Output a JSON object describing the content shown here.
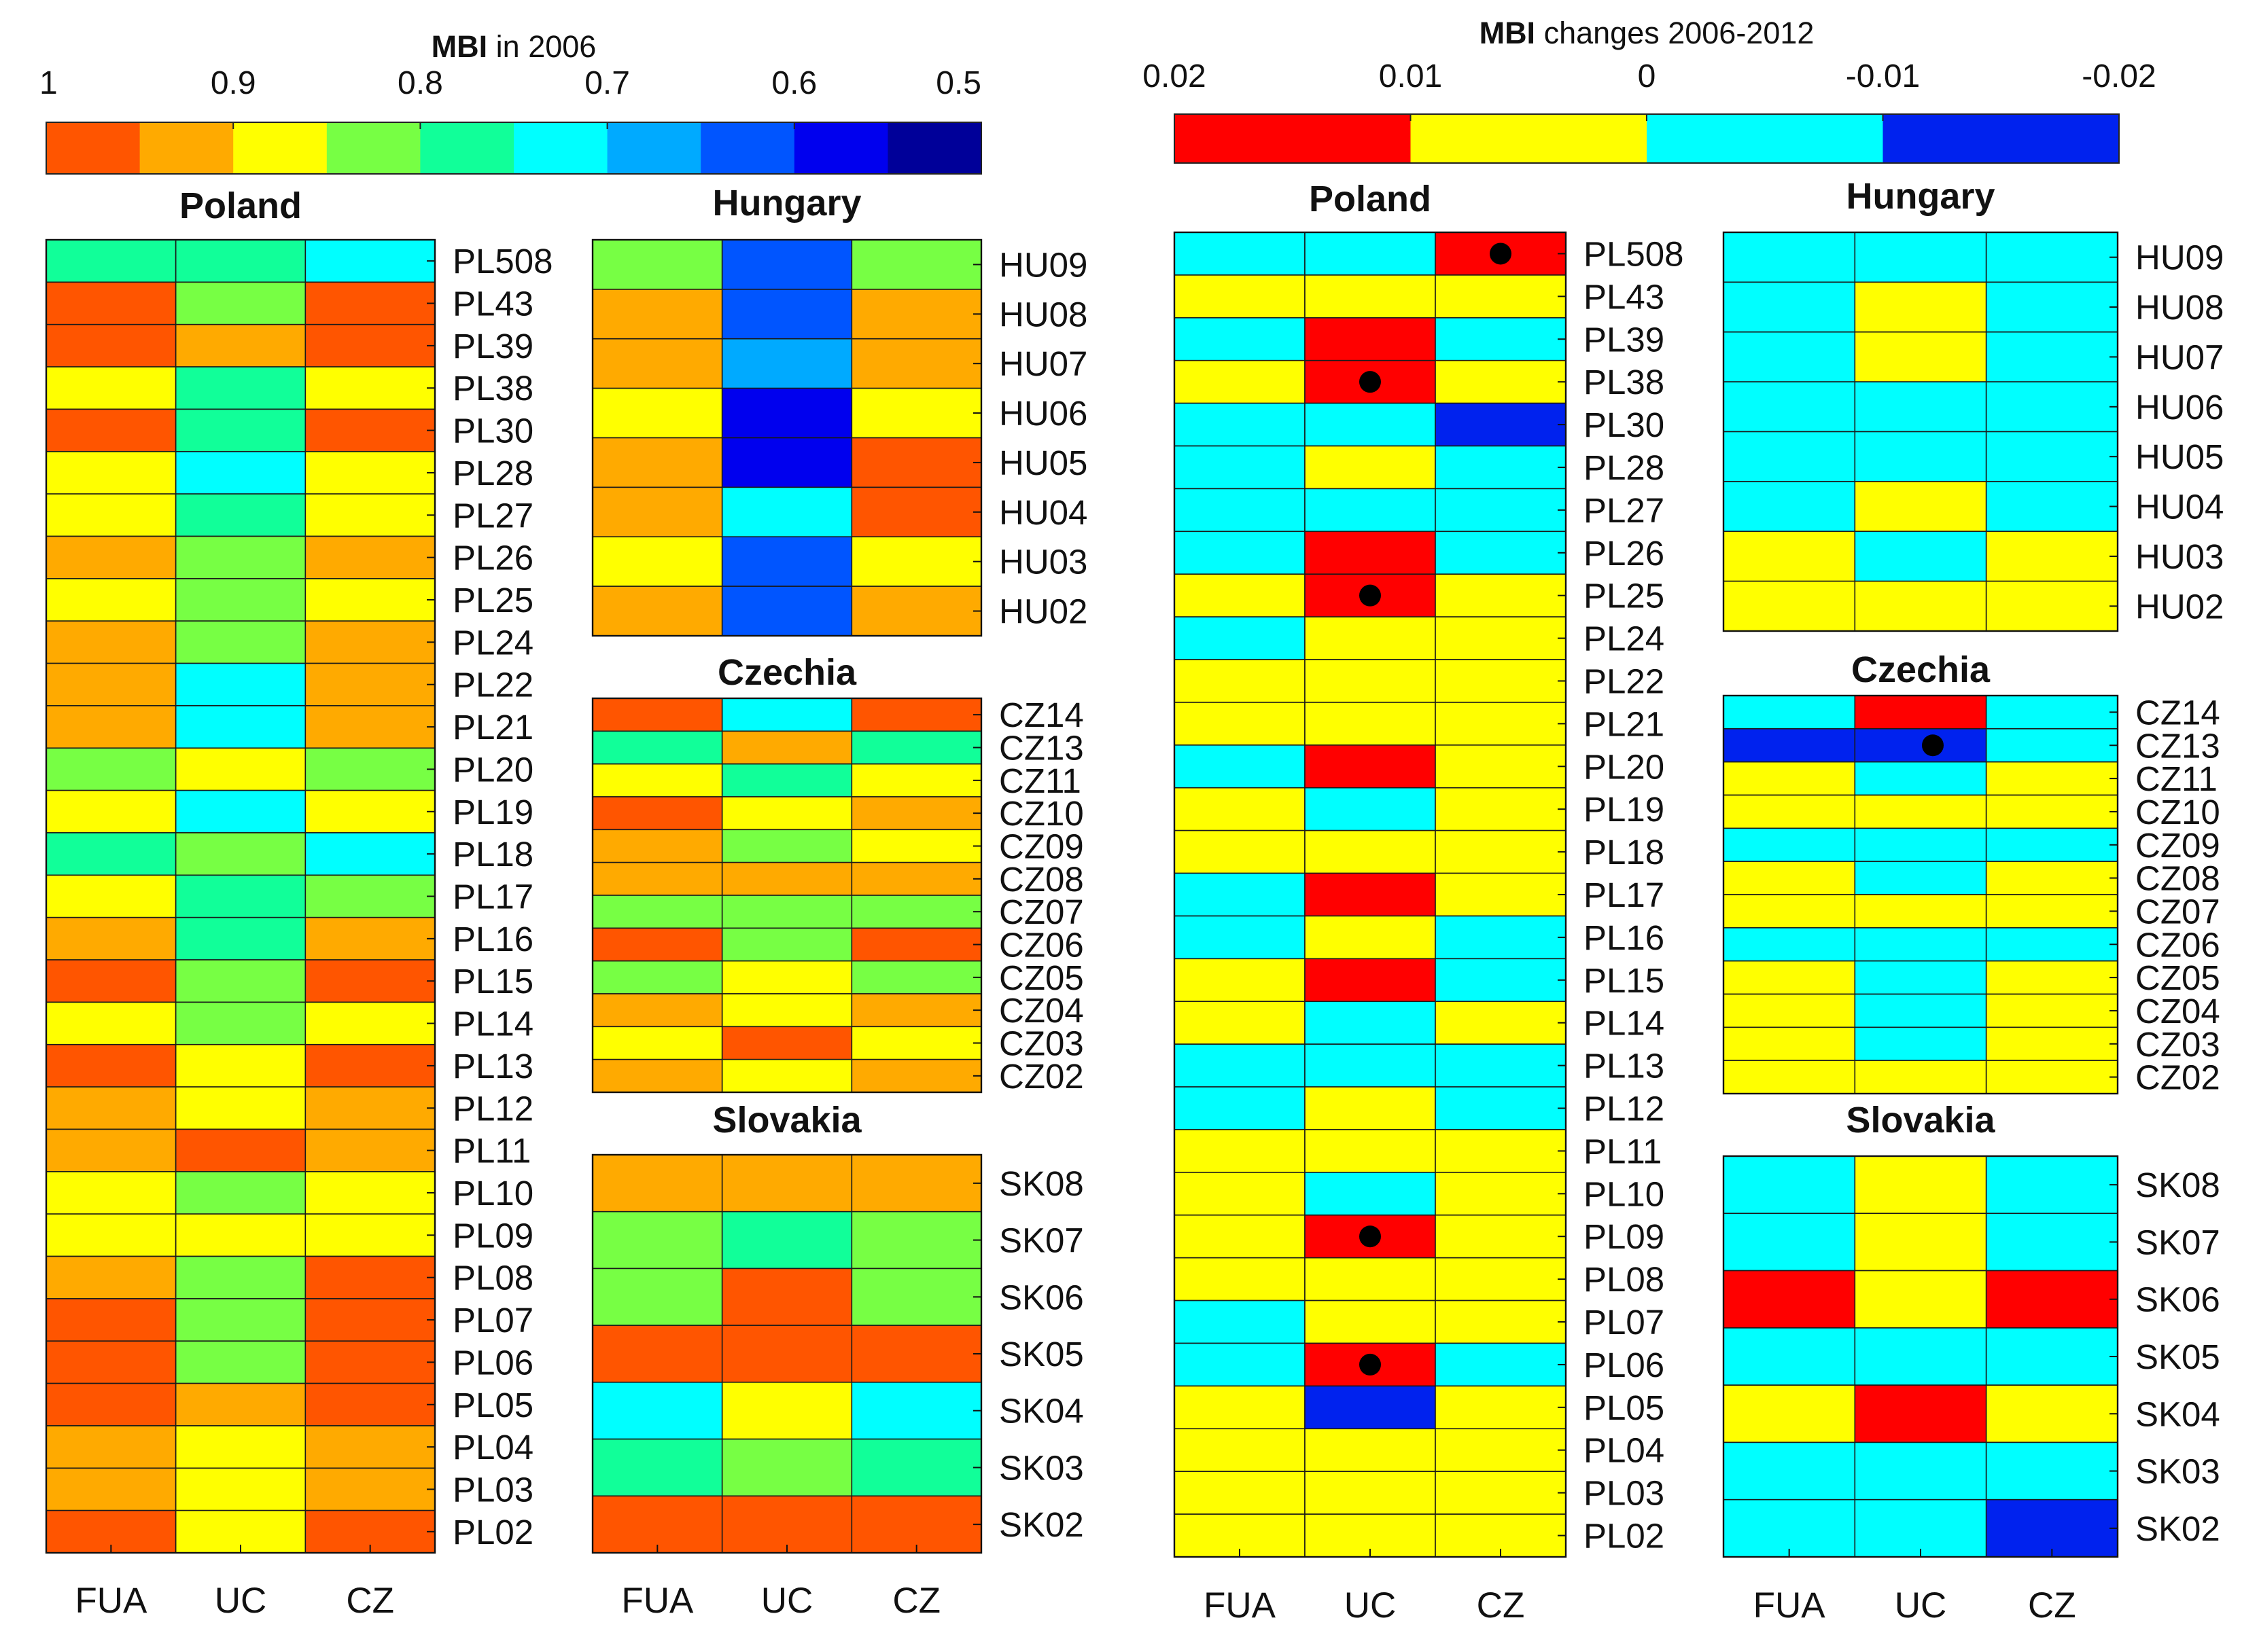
{
  "chart_data": [
    {
      "type": "heatmap",
      "panel": "left",
      "colorbar": {
        "title_bold": "MBI",
        "title_rest": " in 2006",
        "ticks": [
          "1",
          "0.9",
          "0.8",
          "0.7",
          "0.6",
          "0.5"
        ],
        "range": [
          1,
          0.5
        ],
        "colors": [
          "#ff5500",
          "#ffaa00",
          "#ffff00",
          "#77ff44",
          "#11ff99",
          "#00ffff",
          "#00aaff",
          "#0055ff",
          "#0000ee",
          "#000099"
        ]
      },
      "columns": [
        "FUA",
        "UC",
        "CZ"
      ],
      "countries": [
        {
          "name": "Poland",
          "rows": [
            "PL508",
            "PL43",
            "PL39",
            "PL38",
            "PL30",
            "PL28",
            "PL27",
            "PL26",
            "PL25",
            "PL24",
            "PL22",
            "PL21",
            "PL20",
            "PL19",
            "PL18",
            "PL17",
            "PL16",
            "PL15",
            "PL14",
            "PL13",
            "PL12",
            "PL11",
            "PL10",
            "PL09",
            "PL08",
            "PL07",
            "PL06",
            "PL05",
            "PL04",
            "PL03",
            "PL02"
          ],
          "values": [
            [
              4,
              4,
              5
            ],
            [
              0,
              3,
              0
            ],
            [
              0,
              1,
              0
            ],
            [
              2,
              4,
              2
            ],
            [
              0,
              4,
              0
            ],
            [
              2,
              5,
              2
            ],
            [
              2,
              4,
              2
            ],
            [
              1,
              3,
              1
            ],
            [
              2,
              3,
              2
            ],
            [
              1,
              3,
              1
            ],
            [
              1,
              5,
              1
            ],
            [
              1,
              5,
              1
            ],
            [
              3,
              2,
              3
            ],
            [
              2,
              5,
              2
            ],
            [
              4,
              3,
              5
            ],
            [
              2,
              4,
              3
            ],
            [
              1,
              4,
              1
            ],
            [
              0,
              3,
              0
            ],
            [
              2,
              3,
              2
            ],
            [
              0,
              2,
              0
            ],
            [
              1,
              2,
              1
            ],
            [
              1,
              0,
              1
            ],
            [
              2,
              3,
              2
            ],
            [
              2,
              2,
              2
            ],
            [
              1,
              3,
              0
            ],
            [
              0,
              3,
              0
            ],
            [
              0,
              3,
              0
            ],
            [
              0,
              1,
              0
            ],
            [
              1,
              2,
              1
            ],
            [
              1,
              2,
              1
            ],
            [
              0,
              2,
              0
            ]
          ]
        },
        {
          "name": "Hungary",
          "rows": [
            "HU09",
            "HU08",
            "HU07",
            "HU06",
            "HU05",
            "HU04",
            "HU03",
            "HU02"
          ],
          "values": [
            [
              3,
              7,
              3
            ],
            [
              1,
              7,
              1
            ],
            [
              1,
              6,
              1
            ],
            [
              2,
              8,
              2
            ],
            [
              1,
              8,
              0
            ],
            [
              1,
              5,
              0
            ],
            [
              2,
              7,
              2
            ],
            [
              1,
              7,
              1
            ]
          ]
        },
        {
          "name": "Czechia",
          "rows": [
            "CZ14",
            "CZ13",
            "CZ11",
            "CZ10",
            "CZ09",
            "CZ08",
            "CZ07",
            "CZ06",
            "CZ05",
            "CZ04",
            "CZ03",
            "CZ02"
          ],
          "values": [
            [
              0,
              5,
              0
            ],
            [
              4,
              1,
              4
            ],
            [
              2,
              4,
              2
            ],
            [
              0,
              2,
              1
            ],
            [
              1,
              3,
              2
            ],
            [
              1,
              1,
              1
            ],
            [
              3,
              3,
              3
            ],
            [
              0,
              3,
              0
            ],
            [
              3,
              2,
              3
            ],
            [
              1,
              2,
              1
            ],
            [
              2,
              0,
              2
            ],
            [
              1,
              2,
              1
            ]
          ]
        },
        {
          "name": "Slovakia",
          "rows": [
            "SK08",
            "SK07",
            "SK06",
            "SK05",
            "SK04",
            "SK03",
            "SK02"
          ],
          "values": [
            [
              1,
              1,
              1
            ],
            [
              3,
              4,
              3
            ],
            [
              3,
              0,
              3
            ],
            [
              0,
              0,
              0
            ],
            [
              5,
              2,
              5
            ],
            [
              4,
              3,
              4
            ],
            [
              0,
              0,
              0
            ]
          ]
        }
      ]
    },
    {
      "type": "heatmap",
      "panel": "right",
      "colorbar": {
        "title_bold": "MBI",
        "title_rest": " changes 2006-2012",
        "ticks": [
          "0.02",
          "0.01",
          "0",
          "-0.01",
          "-0.02"
        ],
        "range": [
          0.02,
          -0.02
        ],
        "colors": [
          "#ff0000",
          "#ffff00",
          "#00ffff",
          "#0022ee"
        ]
      },
      "columns": [
        "FUA",
        "UC",
        "CZ"
      ],
      "countries": [
        {
          "name": "Poland",
          "rows": [
            "PL508",
            "PL43",
            "PL39",
            "PL38",
            "PL30",
            "PL28",
            "PL27",
            "PL26",
            "PL25",
            "PL24",
            "PL22",
            "PL21",
            "PL20",
            "PL19",
            "PL18",
            "PL17",
            "PL16",
            "PL15",
            "PL14",
            "PL13",
            "PL12",
            "PL11",
            "PL10",
            "PL09",
            "PL08",
            "PL07",
            "PL06",
            "PL05",
            "PL04",
            "PL03",
            "PL02"
          ],
          "values": [
            [
              2,
              2,
              0
            ],
            [
              1,
              1,
              1
            ],
            [
              2,
              0,
              2
            ],
            [
              1,
              0,
              1
            ],
            [
              2,
              2,
              3
            ],
            [
              2,
              1,
              2
            ],
            [
              2,
              2,
              2
            ],
            [
              2,
              0,
              2
            ],
            [
              1,
              0,
              1
            ],
            [
              2,
              1,
              1
            ],
            [
              1,
              1,
              1
            ],
            [
              1,
              1,
              1
            ],
            [
              2,
              0,
              1
            ],
            [
              1,
              2,
              1
            ],
            [
              1,
              1,
              1
            ],
            [
              2,
              0,
              1
            ],
            [
              2,
              1,
              2
            ],
            [
              1,
              0,
              2
            ],
            [
              1,
              2,
              1
            ],
            [
              2,
              2,
              2
            ],
            [
              2,
              1,
              2
            ],
            [
              1,
              1,
              1
            ],
            [
              1,
              2,
              1
            ],
            [
              1,
              0,
              1
            ],
            [
              1,
              1,
              1
            ],
            [
              2,
              1,
              1
            ],
            [
              2,
              0,
              2
            ],
            [
              1,
              3,
              1
            ],
            [
              1,
              1,
              1
            ],
            [
              1,
              1,
              1
            ],
            [
              1,
              1,
              1
            ]
          ],
          "dots": [
            [
              0,
              2
            ],
            [
              3,
              1
            ],
            [
              8,
              1
            ],
            [
              23,
              1
            ],
            [
              26,
              1
            ]
          ]
        },
        {
          "name": "Hungary",
          "rows": [
            "HU09",
            "HU08",
            "HU07",
            "HU06",
            "HU05",
            "HU04",
            "HU03",
            "HU02"
          ],
          "values": [
            [
              2,
              2,
              2
            ],
            [
              2,
              1,
              2
            ],
            [
              2,
              1,
              2
            ],
            [
              2,
              2,
              2
            ],
            [
              2,
              2,
              2
            ],
            [
              2,
              1,
              2
            ],
            [
              1,
              2,
              1
            ],
            [
              1,
              1,
              1
            ]
          ],
          "dots": []
        },
        {
          "name": "Czechia",
          "rows": [
            "CZ14",
            "CZ13",
            "CZ11",
            "CZ10",
            "CZ09",
            "CZ08",
            "CZ07",
            "CZ06",
            "CZ05",
            "CZ04",
            "CZ03",
            "CZ02"
          ],
          "values": [
            [
              2,
              0,
              2
            ],
            [
              3,
              3,
              2
            ],
            [
              1,
              2,
              1
            ],
            [
              1,
              1,
              1
            ],
            [
              2,
              2,
              2
            ],
            [
              1,
              2,
              1
            ],
            [
              1,
              1,
              1
            ],
            [
              2,
              2,
              2
            ],
            [
              1,
              2,
              1
            ],
            [
              1,
              2,
              1
            ],
            [
              1,
              2,
              1
            ],
            [
              1,
              1,
              1
            ]
          ],
          "dots": [
            [
              1,
              1
            ]
          ]
        },
        {
          "name": "Slovakia",
          "rows": [
            "SK08",
            "SK07",
            "SK06",
            "SK05",
            "SK04",
            "SK03",
            "SK02"
          ],
          "values": [
            [
              2,
              1,
              2
            ],
            [
              2,
              1,
              2
            ],
            [
              0,
              1,
              0
            ],
            [
              2,
              2,
              2
            ],
            [
              1,
              0,
              1
            ],
            [
              2,
              2,
              2
            ],
            [
              2,
              2,
              3
            ]
          ],
          "dots": []
        }
      ]
    }
  ]
}
